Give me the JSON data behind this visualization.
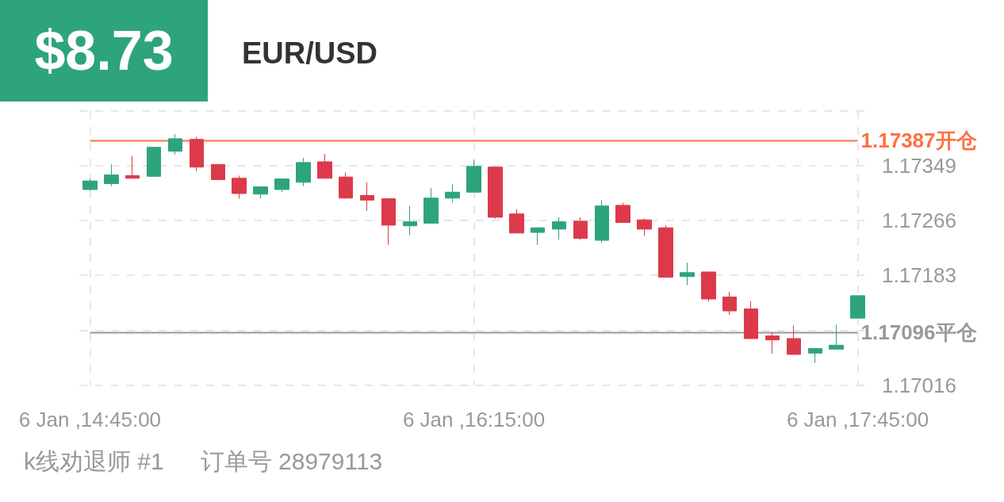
{
  "chart_data": {
    "type": "candlestick",
    "title": "EUR/USD",
    "annotations": [
      "$8.73",
      "k线劝退师 #1",
      "订单号 28979113"
    ],
    "categories": [
      "6 Jan ,14:45:00",
      null,
      null,
      null,
      null,
      null,
      null,
      null,
      null,
      null,
      null,
      null,
      null,
      null,
      null,
      null,
      null,
      null,
      "6 Jan ,16:15:00",
      null,
      null,
      null,
      null,
      null,
      null,
      null,
      null,
      null,
      null,
      null,
      null,
      null,
      null,
      null,
      null,
      null,
      "6 Jan ,17:45:00"
    ],
    "ohlc": [
      [
        1.17313,
        1.17329,
        1.17311,
        1.17326
      ],
      [
        1.17322,
        1.17351,
        1.17318,
        1.17335
      ],
      [
        1.17334,
        1.17364,
        1.1733,
        1.1733
      ],
      [
        1.17333,
        1.17377,
        1.17333,
        1.17377
      ],
      [
        1.17371,
        1.17397,
        1.17366,
        1.1739
      ],
      [
        1.17389,
        1.17393,
        1.17341,
        1.17347
      ],
      [
        1.17351,
        1.17351,
        1.17328,
        1.17328
      ],
      [
        1.1733,
        1.17334,
        1.17299,
        1.17307
      ],
      [
        1.17306,
        1.17317,
        1.17299,
        1.17317
      ],
      [
        1.17313,
        1.17329,
        1.17309,
        1.17329
      ],
      [
        1.17324,
        1.17361,
        1.17318,
        1.17354
      ],
      [
        1.17355,
        1.17367,
        1.1733,
        1.1733
      ],
      [
        1.17332,
        1.17339,
        1.17299,
        1.173
      ],
      [
        1.17304,
        1.17324,
        1.17281,
        1.17297
      ],
      [
        1.17299,
        1.17299,
        1.17229,
        1.17259
      ],
      [
        1.17258,
        1.17288,
        1.17244,
        1.17264
      ],
      [
        1.17262,
        1.17315,
        1.17262,
        1.173
      ],
      [
        1.173,
        1.17321,
        1.17293,
        1.17309
      ],
      [
        1.17309,
        1.17358,
        1.17309,
        1.17348
      ],
      [
        1.17347,
        1.17348,
        1.17269,
        1.17271
      ],
      [
        1.17276,
        1.17283,
        1.17247,
        1.17247
      ],
      [
        1.17248,
        1.17255,
        1.17229,
        1.17255
      ],
      [
        1.17253,
        1.17271,
        1.17237,
        1.17264
      ],
      [
        1.17265,
        1.17271,
        1.17237,
        1.17239
      ],
      [
        1.17236,
        1.17297,
        1.17232,
        1.17288
      ],
      [
        1.17289,
        1.17293,
        1.17263,
        1.17263
      ],
      [
        1.17267,
        1.17269,
        1.17243,
        1.17253
      ],
      [
        1.17255,
        1.17259,
        1.1718,
        1.1718
      ],
      [
        1.17181,
        1.17202,
        1.17168,
        1.17187
      ],
      [
        1.17188,
        1.17188,
        1.17143,
        1.17147
      ],
      [
        1.1715,
        1.17158,
        1.17123,
        1.17129
      ],
      [
        1.17132,
        1.17144,
        1.17087,
        1.17087
      ],
      [
        1.17091,
        1.17096,
        1.17064,
        1.17085
      ],
      [
        1.17087,
        1.17107,
        1.17063,
        1.17063
      ],
      [
        1.17065,
        1.17072,
        1.1705,
        1.17072
      ],
      [
        1.17071,
        1.17108,
        1.17071,
        1.17077
      ],
      [
        1.17118,
        1.17152,
        1.17118,
        1.17152
      ]
    ],
    "colors": [
      "#2ea47b",
      "#2ea47b",
      "#dc3a4a",
      "#2ea47b",
      "#2ea47b",
      "#dc3a4a",
      "#dc3a4a",
      "#dc3a4a",
      "#2ea47b",
      "#2ea47b",
      "#2ea47b",
      "#dc3a4a",
      "#dc3a4a",
      "#dc3a4a",
      "#dc3a4a",
      "#2ea47b",
      "#2ea47b",
      "#2ea47b",
      "#2ea47b",
      "#dc3a4a",
      "#dc3a4a",
      "#2ea47b",
      "#2ea47b",
      "#dc3a4a",
      "#2ea47b",
      "#dc3a4a",
      "#dc3a4a",
      "#dc3a4a",
      "#2ea47b",
      "#dc3a4a",
      "#dc3a4a",
      "#dc3a4a",
      "#dc3a4a",
      "#dc3a4a",
      "#2ea47b",
      "#2ea47b",
      "#2ea47b"
    ],
    "ylim": [
      1.17016,
      1.17432
    ],
    "yticks": [
      1.17016,
      {
        "value": 1.17099,
        "label": null
      },
      1.17183,
      1.17266,
      1.17349,
      {
        "value": 1.17432,
        "label": null
      }
    ],
    "ref_lines": [
      {
        "axis": "y",
        "value": 1.17387,
        "label": "1.17387开仓",
        "color": "#ff7043"
      },
      {
        "axis": "y",
        "value": 1.17096,
        "label": "1.17096平仓",
        "color": "#999999"
      }
    ],
    "grid": true
  }
}
